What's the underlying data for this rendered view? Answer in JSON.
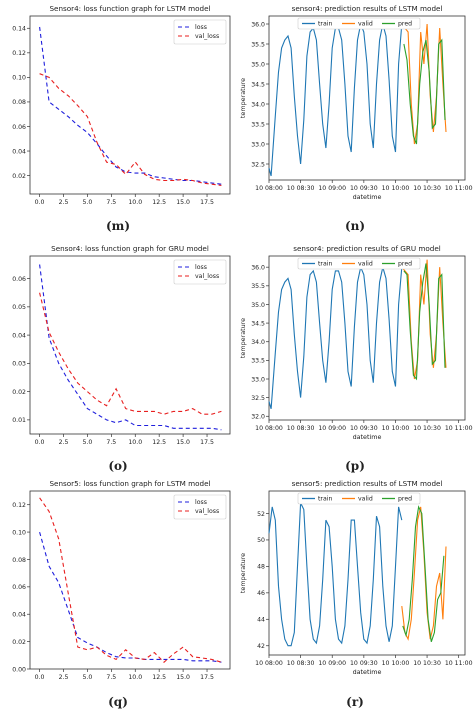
{
  "chart_data": [
    {
      "id": "m",
      "type": "line",
      "title": "Sensor4: loss function graph for LSTM model",
      "xlabel": "",
      "ylabel": "",
      "x": [
        0,
        1,
        2,
        3,
        4,
        5,
        6,
        7,
        8,
        9,
        10,
        11,
        12,
        13,
        14,
        15,
        16,
        17,
        18,
        19
      ],
      "xlim": [
        -1,
        19.9
      ],
      "ylim": [
        0.005,
        0.15
      ],
      "xticks": [
        0.0,
        2.5,
        5.0,
        7.5,
        10.0,
        12.5,
        15.0,
        17.5
      ],
      "xtick_labels": [
        "0.0",
        "2.5",
        "5.0",
        "7.5",
        "10.0",
        "12.5",
        "15.0",
        "17.5"
      ],
      "yticks": [
        0.02,
        0.04,
        0.06,
        0.08,
        0.1,
        0.12,
        0.14
      ],
      "ytick_labels": [
        "0.02",
        "0.04",
        "0.06",
        "0.08",
        "0.10",
        "0.12",
        "0.14"
      ],
      "legend": "top-right",
      "series": [
        {
          "name": "loss",
          "color": "#1f1fdc",
          "dash": "4,3",
          "values": [
            0.141,
            0.08,
            0.074,
            0.068,
            0.061,
            0.055,
            0.046,
            0.036,
            0.027,
            0.023,
            0.022,
            0.022,
            0.019,
            0.018,
            0.017,
            0.016,
            0.016,
            0.015,
            0.014,
            0.013
          ]
        },
        {
          "name": "val_loss",
          "color": "#e81f1f",
          "dash": "4,3",
          "values": [
            0.103,
            0.1,
            0.091,
            0.085,
            0.077,
            0.068,
            0.047,
            0.031,
            0.029,
            0.021,
            0.031,
            0.021,
            0.017,
            0.016,
            0.016,
            0.017,
            0.016,
            0.014,
            0.013,
            0.012
          ]
        }
      ]
    },
    {
      "id": "n",
      "type": "line",
      "title": "sensor4: prediction results of LSTM model",
      "xlabel": "datetime",
      "ylabel": "temperature",
      "xlim": [
        0,
        186
      ],
      "ylim": [
        32.1,
        36.2
      ],
      "xticks": [
        0,
        30,
        60,
        90,
        120,
        150,
        180
      ],
      "xtick_labels": [
        "10 08:00",
        "10 08:30",
        "10 09:00",
        "10 09:30",
        "10 10:00",
        "10 10:30",
        "10 11:00"
      ],
      "yticks": [
        32.5,
        33.0,
        33.5,
        34.0,
        34.5,
        35.0,
        35.5,
        36.0
      ],
      "ytick_labels": [
        "32.5",
        "33.0",
        "33.5",
        "34.0",
        "34.5",
        "35.0",
        "35.5",
        "36.0"
      ],
      "legend": "top-center",
      "series": [
        {
          "name": "train",
          "color": "#1f77b4",
          "x": [
            0,
            2,
            6,
            9,
            12,
            15,
            18,
            21,
            24,
            27,
            30,
            33,
            36,
            39,
            42,
            45,
            48,
            51,
            54,
            57,
            60,
            63,
            66,
            69,
            72,
            75,
            78,
            81,
            84,
            87,
            90,
            93,
            96,
            99,
            102,
            105,
            108,
            111,
            114,
            117,
            120,
            123,
            126
          ],
          "values": [
            32.4,
            32.2,
            33.7,
            34.8,
            35.4,
            35.6,
            35.7,
            35.4,
            34.2,
            33.2,
            32.5,
            33.6,
            35.2,
            35.8,
            35.9,
            35.6,
            34.5,
            33.5,
            32.9,
            34.0,
            35.4,
            35.9,
            35.9,
            35.6,
            34.5,
            33.2,
            32.8,
            34.4,
            35.6,
            36.0,
            35.8,
            35.0,
            33.5,
            32.9,
            34.5,
            35.6,
            36.0,
            35.7,
            34.6,
            33.2,
            32.8,
            35.0,
            36.0
          ]
        },
        {
          "name": "valid",
          "color": "#ff7f0e",
          "x": [
            126,
            129,
            132,
            135,
            138,
            141,
            144,
            147,
            150,
            153,
            156,
            159,
            162,
            165,
            168
          ],
          "values": [
            36.0,
            35.9,
            35.8,
            34.0,
            33.0,
            33.5,
            35.8,
            35.0,
            36.0,
            34.2,
            33.3,
            34.2,
            35.9,
            34.5,
            33.3
          ]
        },
        {
          "name": "pred",
          "color": "#2ca02c",
          "x": [
            128,
            131,
            134,
            137,
            140,
            143,
            146,
            149,
            152,
            155,
            158,
            161,
            164,
            167
          ],
          "values": [
            35.5,
            35.1,
            34.0,
            33.2,
            33.0,
            34.5,
            35.3,
            35.6,
            34.8,
            33.4,
            33.5,
            35.5,
            35.6,
            33.6
          ]
        }
      ]
    },
    {
      "id": "o",
      "type": "line",
      "title": "Sensor4: loss function graph for GRU model",
      "xlabel": "",
      "ylabel": "",
      "x": [
        0,
        1,
        2,
        3,
        4,
        5,
        6,
        7,
        8,
        9,
        10,
        11,
        12,
        13,
        14,
        15,
        16,
        17,
        18,
        19
      ],
      "xlim": [
        -1,
        19.9
      ],
      "ylim": [
        0.005,
        0.068
      ],
      "xticks": [
        0.0,
        2.5,
        5.0,
        7.5,
        10.0,
        12.5,
        15.0,
        17.5
      ],
      "xtick_labels": [
        "0.0",
        "2.5",
        "5.0",
        "7.5",
        "10.0",
        "12.5",
        "15.0",
        "17.5"
      ],
      "yticks": [
        0.01,
        0.02,
        0.03,
        0.04,
        0.05,
        0.06
      ],
      "ytick_labels": [
        "0.01",
        "0.02",
        "0.03",
        "0.04",
        "0.05",
        "0.06"
      ],
      "legend": "top-right",
      "series": [
        {
          "name": "loss",
          "color": "#1f1fdc",
          "dash": "4,3",
          "values": [
            0.065,
            0.039,
            0.03,
            0.024,
            0.019,
            0.014,
            0.012,
            0.01,
            0.009,
            0.01,
            0.008,
            0.008,
            0.008,
            0.008,
            0.007,
            0.007,
            0.007,
            0.007,
            0.007,
            0.0065
          ]
        },
        {
          "name": "val_loss",
          "color": "#e81f1f",
          "dash": "4,3",
          "values": [
            0.055,
            0.041,
            0.034,
            0.028,
            0.023,
            0.02,
            0.017,
            0.015,
            0.021,
            0.014,
            0.013,
            0.013,
            0.013,
            0.012,
            0.013,
            0.013,
            0.014,
            0.012,
            0.012,
            0.013
          ]
        }
      ]
    },
    {
      "id": "p",
      "type": "line",
      "title": "sensor4: prediction results of GRU model",
      "xlabel": "datetime",
      "ylabel": "temperature",
      "xlim": [
        0,
        186
      ],
      "ylim": [
        31.9,
        36.3
      ],
      "xticks": [
        0,
        30,
        60,
        90,
        120,
        150,
        180
      ],
      "xtick_labels": [
        "10 08:00",
        "10 08:30",
        "10 09:00",
        "10 09:30",
        "10 10:00",
        "10 10:30",
        "10 11:00"
      ],
      "yticks": [
        32.0,
        32.5,
        33.0,
        33.5,
        34.0,
        34.5,
        35.0,
        35.5,
        36.0
      ],
      "ytick_labels": [
        "32.0",
        "32.5",
        "33.0",
        "33.5",
        "34.0",
        "34.5",
        "35.0",
        "35.5",
        "36.0"
      ],
      "legend": "top-center",
      "series": [
        {
          "name": "train",
          "color": "#1f77b4",
          "x": [
            0,
            2,
            6,
            9,
            12,
            15,
            18,
            21,
            24,
            27,
            30,
            33,
            36,
            39,
            42,
            45,
            48,
            51,
            54,
            57,
            60,
            63,
            66,
            69,
            72,
            75,
            78,
            81,
            84,
            87,
            90,
            93,
            96,
            99,
            102,
            105,
            108,
            111,
            114,
            117,
            120,
            123,
            126
          ],
          "values": [
            32.4,
            32.2,
            33.7,
            34.8,
            35.4,
            35.6,
            35.7,
            35.4,
            34.2,
            33.2,
            32.5,
            33.6,
            35.2,
            35.8,
            35.9,
            35.6,
            34.5,
            33.5,
            32.9,
            34.0,
            35.4,
            35.9,
            35.9,
            35.6,
            34.5,
            33.2,
            32.8,
            34.4,
            35.6,
            36.0,
            35.8,
            35.0,
            33.5,
            32.9,
            34.5,
            35.6,
            36.0,
            35.7,
            34.6,
            33.2,
            32.8,
            35.0,
            36.0
          ]
        },
        {
          "name": "valid",
          "color": "#ff7f0e",
          "x": [
            126,
            129,
            132,
            135,
            138,
            141,
            144,
            147,
            150,
            153,
            156,
            159,
            162,
            165,
            168
          ],
          "values": [
            36.0,
            35.9,
            35.8,
            34.0,
            33.0,
            33.5,
            35.8,
            35.0,
            36.2,
            34.2,
            33.3,
            34.2,
            36.0,
            34.5,
            33.3
          ]
        },
        {
          "name": "pred",
          "color": "#2ca02c",
          "x": [
            128,
            131,
            134,
            137,
            140,
            143,
            146,
            149,
            152,
            155,
            158,
            161,
            164,
            167
          ],
          "values": [
            35.9,
            35.8,
            34.3,
            33.1,
            33.0,
            34.8,
            35.6,
            36.1,
            35.0,
            33.4,
            33.5,
            35.7,
            35.8,
            33.3
          ]
        }
      ]
    },
    {
      "id": "q",
      "type": "line",
      "title": "Sensor5: loss function graph for LSTM model",
      "xlabel": "",
      "ylabel": "",
      "x": [
        0,
        1,
        2,
        3,
        4,
        5,
        6,
        7,
        8,
        9,
        10,
        11,
        12,
        13,
        14,
        15,
        16,
        17,
        18,
        19
      ],
      "xlim": [
        -1,
        19.9
      ],
      "ylim": [
        0.0,
        0.13
      ],
      "xticks": [
        0.0,
        2.5,
        5.0,
        7.5,
        10.0,
        12.5,
        15.0,
        17.5
      ],
      "xtick_labels": [
        "0.0",
        "2.5",
        "5.0",
        "7.5",
        "10.0",
        "12.5",
        "15.0",
        "17.5"
      ],
      "yticks": [
        0.0,
        0.02,
        0.04,
        0.06,
        0.08,
        0.1,
        0.12
      ],
      "ytick_labels": [
        "0.00",
        "0.02",
        "0.04",
        "0.06",
        "0.08",
        "0.10",
        "0.12"
      ],
      "legend": "top-right",
      "series": [
        {
          "name": "loss",
          "color": "#1f1fdc",
          "dash": "4,3",
          "values": [
            0.1,
            0.075,
            0.063,
            0.043,
            0.023,
            0.019,
            0.016,
            0.012,
            0.009,
            0.008,
            0.008,
            0.007,
            0.007,
            0.007,
            0.007,
            0.007,
            0.006,
            0.006,
            0.006,
            0.005
          ]
        },
        {
          "name": "val_loss",
          "color": "#e81f1f",
          "dash": "4,3",
          "values": [
            0.125,
            0.115,
            0.095,
            0.055,
            0.016,
            0.014,
            0.016,
            0.01,
            0.007,
            0.014,
            0.008,
            0.007,
            0.012,
            0.005,
            0.011,
            0.016,
            0.009,
            0.008,
            0.007,
            0.005
          ]
        }
      ]
    },
    {
      "id": "r",
      "type": "line",
      "title": "sensor5: prediction results of LSTM model",
      "xlabel": "datetime",
      "ylabel": "temperature",
      "xlim": [
        0,
        186
      ],
      "ylim": [
        41.3,
        53.7
      ],
      "xticks": [
        0,
        30,
        60,
        90,
        120,
        150,
        180
      ],
      "xtick_labels": [
        "10 08:00",
        "10 08:30",
        "10 09:00",
        "10 09:30",
        "10 10:00",
        "10 10:30",
        "10 11:00"
      ],
      "yticks": [
        42,
        44,
        46,
        48,
        50,
        52
      ],
      "ytick_labels": [
        "42",
        "44",
        "46",
        "48",
        "50",
        "52"
      ],
      "legend": "top-center",
      "series": [
        {
          "name": "train",
          "color": "#1f77b4",
          "x": [
            0,
            3,
            6,
            9,
            12,
            15,
            18,
            21,
            24,
            27,
            30,
            33,
            36,
            39,
            42,
            45,
            48,
            51,
            54,
            57,
            60,
            63,
            66,
            69,
            72,
            75,
            78,
            81,
            84,
            87,
            90,
            93,
            96,
            99,
            102,
            105,
            108,
            111,
            114,
            117,
            120,
            123,
            126
          ],
          "values": [
            50.5,
            52.5,
            51.5,
            46.5,
            44.0,
            42.5,
            42.0,
            42.0,
            43.0,
            48.0,
            52.8,
            52.3,
            48.0,
            44.0,
            42.5,
            42.2,
            43.5,
            47.0,
            51.5,
            51.0,
            48.0,
            44.0,
            42.5,
            42.2,
            43.5,
            47.0,
            51.5,
            51.5,
            48.0,
            44.5,
            42.5,
            42.2,
            43.5,
            47.0,
            51.8,
            51.0,
            46.5,
            43.5,
            42.3,
            43.5,
            48.0,
            52.5,
            51.5
          ]
        },
        {
          "name": "valid",
          "color": "#ff7f0e",
          "x": [
            126,
            129,
            132,
            135,
            138,
            141,
            144,
            147,
            150,
            153,
            156,
            159,
            162,
            165,
            168
          ],
          "values": [
            45.0,
            43.0,
            42.5,
            44.0,
            47.5,
            51.5,
            52.5,
            49.0,
            44.5,
            42.5,
            43.5,
            46.5,
            47.5,
            44.0,
            49.5
          ]
        },
        {
          "name": "pred",
          "color": "#2ca02c",
          "x": [
            127,
            130,
            133,
            136,
            139,
            142,
            145,
            148,
            151,
            154,
            157,
            160,
            163,
            166
          ],
          "values": [
            43.5,
            42.8,
            44.0,
            47.0,
            51.0,
            52.5,
            52.0,
            48.0,
            44.0,
            42.3,
            43.0,
            45.5,
            46.0,
            48.8
          ]
        }
      ]
    }
  ],
  "captions": {
    "m": "(m)",
    "n": "(n)",
    "o": "(o)",
    "p": "(p)",
    "q": "(q)",
    "r": "(r)"
  }
}
